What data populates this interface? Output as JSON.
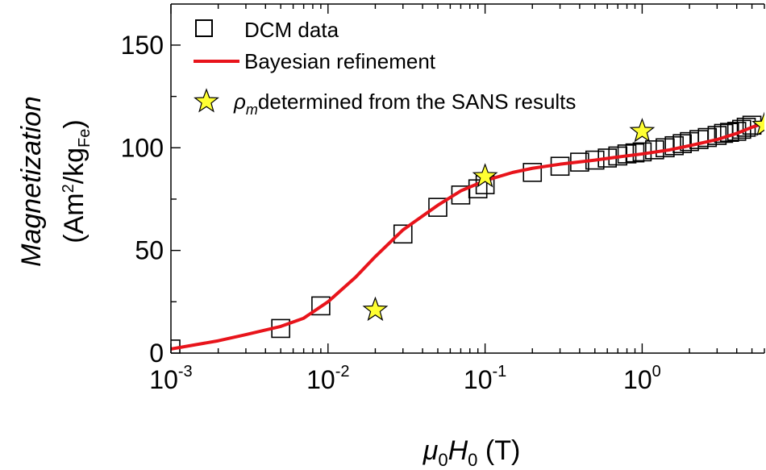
{
  "chart_data": {
    "type": "scatter",
    "x_scale": "log",
    "y_scale": "linear",
    "xlim": [
      0.001,
      6
    ],
    "ylim": [
      0,
      170
    ],
    "grid": false,
    "legend_placement": "top-left",
    "xlabel": {
      "mu": "μ",
      "sub1": "0",
      "h": "H",
      "sub2": "0",
      "unit": " (T)"
    },
    "ylabel": {
      "line1": "Magnetization",
      "line2_pre": "(Am",
      "line2_sup": "2",
      "line2_mid": "/kg",
      "line2_sub": "Fe",
      "line2_post": ")"
    },
    "x_ticks": [
      {
        "value": 0.001,
        "base": "10",
        "exp": "-3"
      },
      {
        "value": 0.01,
        "base": "10",
        "exp": "-2"
      },
      {
        "value": 0.1,
        "base": "10",
        "exp": "-1"
      },
      {
        "value": 1,
        "base": "10",
        "exp": "0"
      }
    ],
    "y_ticks": [
      {
        "value": 0,
        "label": "0"
      },
      {
        "value": 50,
        "label": "50"
      },
      {
        "value": 100,
        "label": "100"
      },
      {
        "value": 150,
        "label": "150"
      }
    ],
    "series": [
      {
        "name": "DCM data",
        "marker": "square",
        "x": [
          0.001,
          0.005,
          0.009,
          0.03,
          0.05,
          0.07,
          0.09,
          0.1,
          0.2,
          0.3,
          0.4,
          0.5,
          0.6,
          0.7,
          0.8,
          0.9,
          1.0,
          1.2,
          1.4,
          1.6,
          1.8,
          2.0,
          2.3,
          2.6,
          3.0,
          3.3,
          3.6,
          4.0,
          4.3,
          4.6,
          5.0
        ],
        "y": [
          2,
          12,
          23,
          58,
          71,
          77,
          80,
          82,
          88,
          91,
          93,
          94,
          95,
          96,
          97,
          97.5,
          98,
          99,
          100,
          101,
          102,
          103,
          104,
          105,
          106,
          107,
          107.5,
          108,
          109,
          110,
          111
        ]
      },
      {
        "name": "Bayesian refinement",
        "color": "#e8141b",
        "x": [
          0.001,
          0.002,
          0.003,
          0.005,
          0.007,
          0.01,
          0.015,
          0.02,
          0.03,
          0.05,
          0.07,
          0.1,
          0.15,
          0.2,
          0.3,
          0.5,
          0.7,
          1.0,
          1.5,
          2.0,
          3.0,
          4.0,
          5.0,
          6.0
        ],
        "y": [
          2,
          6,
          9,
          13,
          17,
          25,
          37,
          47,
          60,
          72,
          79,
          84,
          88,
          90,
          92,
          94,
          95.5,
          97,
          99,
          101,
          104,
          107,
          110,
          112
        ]
      },
      {
        "name": "ρ_m determined from the SANS results",
        "legend_rho": "ρ",
        "legend_sub": "m",
        "legend_rest": "determined from the SANS results",
        "marker": "star",
        "color": "#ffff33",
        "x": [
          0.02,
          0.1,
          1.0,
          6.0
        ],
        "y": [
          21,
          86,
          108,
          111
        ]
      }
    ]
  }
}
